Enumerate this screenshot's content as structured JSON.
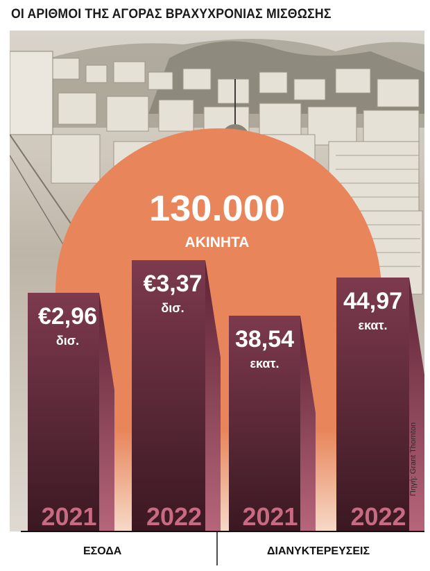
{
  "title": "ΟΙ ΑΡΙΘΜΟΙ ΤΗΣ ΑΓΟΡΑΣ ΒΡΑΧΥΧΡΟΝΙΑΣ ΜΙΣΘΩΣΗΣ",
  "headline": {
    "value": "130.000",
    "unit": "ΑΚΙΝΗΤΑ"
  },
  "source": "Πηγή: Grant Thornton",
  "colors": {
    "sun": "#e8855a",
    "bar_top": "#7d3a4e",
    "bar_bottom": "#3a1822",
    "bar_side": "#b6657a",
    "year_text": "#c86a82",
    "value_text": "#ffffff"
  },
  "chart_data": [
    {
      "type": "bar",
      "group_label": "ΕΣΟΔΑ",
      "categories": [
        "2021",
        "2022"
      ],
      "values": [
        2.96,
        3.37
      ],
      "labels": [
        {
          "value": "€2,96",
          "unit": "δισ."
        },
        {
          "value": "€3,37",
          "unit": "δισ."
        }
      ]
    },
    {
      "type": "bar",
      "group_label": "ΔΙΑΝΥΚΤΕΡΕΥΣΕΙΣ",
      "categories": [
        "2021",
        "2022"
      ],
      "values": [
        38.54,
        44.97
      ],
      "labels": [
        {
          "value": "38,54",
          "unit": "εκατ."
        },
        {
          "value": "44,97",
          "unit": "εκατ."
        }
      ]
    }
  ]
}
